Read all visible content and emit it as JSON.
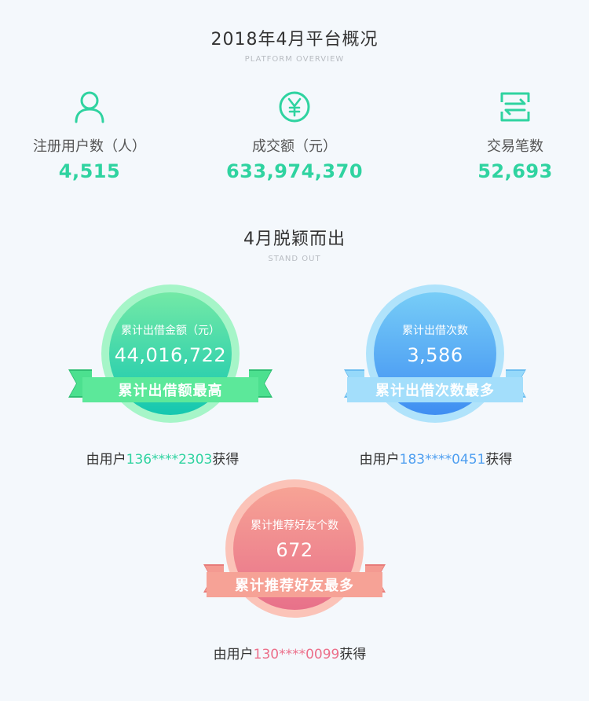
{
  "overview": {
    "title": "2018年4月平台概况",
    "subtitle": "PLATFORM OVERVIEW"
  },
  "stats": [
    {
      "icon": "user-icon",
      "label": "注册用户数（人）",
      "value": "4,515"
    },
    {
      "icon": "yen-icon",
      "label": "成交额（元）",
      "value": "633,974,370"
    },
    {
      "icon": "transaction-icon",
      "label": "交易笔数",
      "value": "52,693"
    }
  ],
  "standout": {
    "title": "4月脱颖而出",
    "subtitle": "STAND OUT"
  },
  "badges": [
    {
      "label": "累计出借金额（元）",
      "value": "44,016,722",
      "ribbon": "累计出借额最高",
      "winner_prefix": "由用户",
      "winner_phone": "136****2303",
      "winner_suffix": "获得",
      "colors": {
        "outer": "#a6f5c8",
        "inner_top": "#73e9a6",
        "inner_bottom": "#14c7b0",
        "ribbon": "#4ce08f",
        "ribbon_dark": "#2fbf73",
        "phone": "#2fd3a0"
      }
    },
    {
      "label": "累计出借次数",
      "value": "3,586",
      "ribbon": "累计出借次数最多",
      "winner_prefix": "由用户",
      "winner_phone": "183****0451",
      "winner_suffix": "获得",
      "colors": {
        "outer": "#b0e3fb",
        "inner_top": "#77cdf7",
        "inner_bottom": "#3f8ef2",
        "ribbon": "#96d9fa",
        "ribbon_dark": "#6bbdf0",
        "phone": "#4f9ff0"
      }
    },
    {
      "label": "累计推荐好友个数",
      "value": "672",
      "ribbon": "累计推荐好友最多",
      "winner_prefix": "由用户",
      "winner_phone": "130****0099",
      "winner_suffix": "获得",
      "colors": {
        "outer": "#fbc3b8",
        "inner_top": "#f7a395",
        "inner_bottom": "#e8718a",
        "ribbon": "#f49a91",
        "ribbon_dark": "#e77c7a",
        "phone": "#ec6f8a"
      }
    }
  ]
}
